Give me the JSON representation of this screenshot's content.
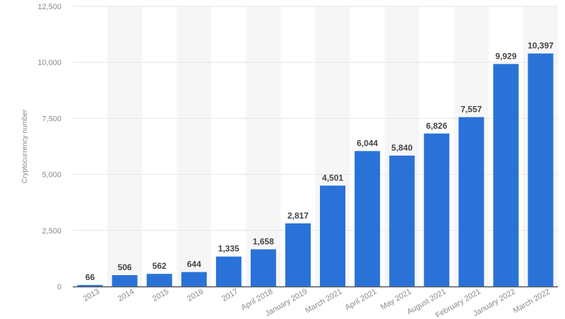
{
  "chart_data": {
    "type": "bar",
    "title": "",
    "xlabel": "",
    "ylabel": "Cryptocurrency number",
    "ylim": [
      0,
      12500
    ],
    "yticks": [
      0,
      2500,
      5000,
      7500,
      10000,
      12500
    ],
    "ytick_labels": [
      "0",
      "2,500",
      "5,000",
      "7,500",
      "10,000",
      "12,500"
    ],
    "grid": true,
    "categories": [
      "2013",
      "2014",
      "2015",
      "2016",
      "2017",
      "April 2018",
      "January 2019",
      "March 2021",
      "April 2021",
      "May 2021",
      "August 2021",
      "February 2021",
      "January 2022",
      "March 2022"
    ],
    "values": [
      66,
      506,
      562,
      644,
      1335,
      1658,
      2817,
      4501,
      6044,
      5840,
      6826,
      7557,
      9929,
      10397
    ],
    "value_labels": [
      "66",
      "506",
      "562",
      "644",
      "1,335",
      "1,658",
      "2,817",
      "4,501",
      "6,044",
      "5,840",
      "6,826",
      "7,557",
      "9,929",
      "10,397"
    ],
    "colors": {
      "bar": "#2a72d8",
      "band": "#f6f6f6",
      "grid": "#e6e6e6",
      "axis": "#555555"
    }
  }
}
